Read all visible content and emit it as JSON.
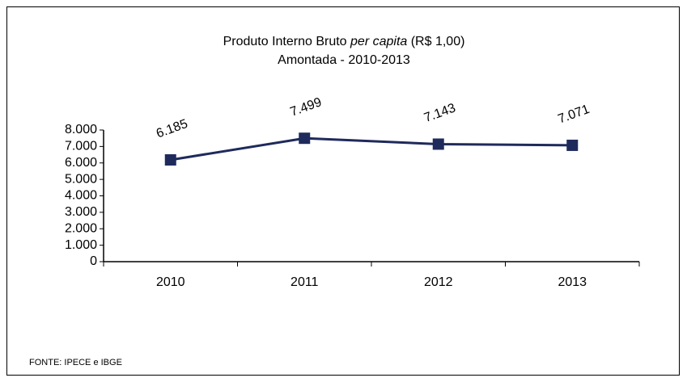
{
  "chart_data": {
    "type": "line",
    "title": [
      "Produto Interno Bruto ",
      "per capita",
      " (R$ 1,00)"
    ],
    "subtitle": "Amontada - 2010-2013",
    "source": "FONTE: IPECE e IBGE",
    "categories": [
      "2010",
      "2011",
      "2012",
      "2013"
    ],
    "values": [
      6185,
      7499,
      7143,
      7071
    ],
    "value_labels": [
      "6.185",
      "7.499",
      "7.143",
      "7.071"
    ],
    "color": "#1f2a5c",
    "ylim": [
      0,
      8000
    ],
    "yticks": [
      0,
      {
        "value": 1000,
        "label": "1.000"
      },
      {
        "value": 2000,
        "label": "2.000"
      },
      {
        "value": 3000,
        "label": "3.000"
      },
      {
        "value": 4000,
        "label": "4.000"
      },
      {
        "value": 5000,
        "label": "5.000"
      },
      {
        "value": 6000,
        "label": "6.000"
      },
      {
        "value": 7000,
        "label": "7.000"
      },
      {
        "value": 8000,
        "label": "8.000"
      }
    ],
    "grid": false
  }
}
